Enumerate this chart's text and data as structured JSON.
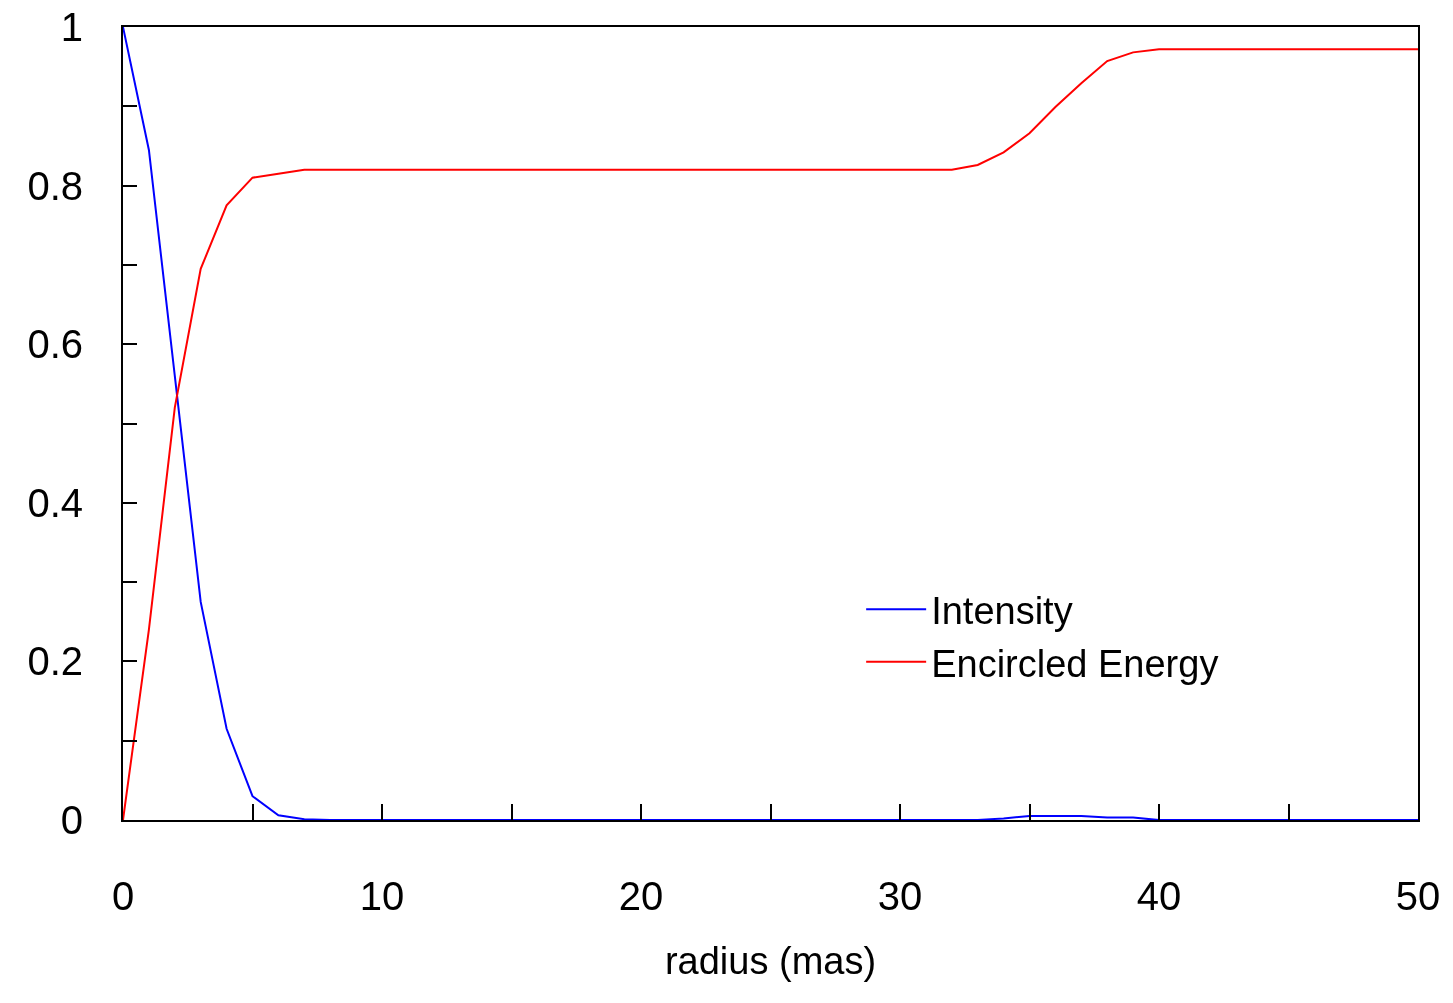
{
  "chart_data": {
    "type": "line",
    "xlabel": "radius (mas)",
    "x": [
      0,
      1,
      2,
      3,
      4,
      5,
      6,
      7,
      8,
      9,
      10,
      11,
      12,
      13,
      14,
      15,
      16,
      17,
      18,
      19,
      20,
      21,
      22,
      23,
      24,
      25,
      26,
      27,
      28,
      29,
      30,
      31,
      32,
      33,
      34,
      35,
      36,
      37,
      38,
      39,
      40,
      41,
      42,
      43,
      44,
      45,
      46,
      47,
      48,
      49,
      50
    ],
    "series": [
      {
        "name": "Intensity",
        "color": "#0000ff",
        "values": [
          1,
          0.845,
          0.56,
          0.275,
          0.115,
          0.03,
          0.006,
          0.001,
          0,
          0,
          0,
          0,
          0,
          0,
          0,
          0,
          0,
          0,
          0,
          0,
          0,
          0,
          0,
          0,
          0,
          0,
          0,
          0,
          0,
          0,
          0,
          0,
          0,
          0,
          0.002,
          0.005,
          0.005,
          0.005,
          0.003,
          0.003,
          0,
          0,
          0,
          0,
          0,
          0,
          0,
          0,
          0,
          0,
          0
        ]
      },
      {
        "name": "Encircled Energy",
        "color": "#ff0000",
        "values": [
          0,
          0.24,
          0.52,
          0.695,
          0.775,
          0.81,
          0.815,
          0.82,
          0.82,
          0.82,
          0.82,
          0.82,
          0.82,
          0.82,
          0.82,
          0.82,
          0.82,
          0.82,
          0.82,
          0.82,
          0.82,
          0.82,
          0.82,
          0.82,
          0.82,
          0.82,
          0.82,
          0.82,
          0.82,
          0.82,
          0.82,
          0.82,
          0.82,
          0.826,
          0.842,
          0.866,
          0.899,
          0.929,
          0.957,
          0.968,
          0.972,
          0.972,
          0.972,
          0.972,
          0.972,
          0.972,
          0.972,
          0.972,
          0.972,
          0.972,
          0.972
        ]
      }
    ],
    "xlim": [
      0,
      50
    ],
    "xticks": [
      0,
      {
        "value": 5,
        "label": null
      },
      10,
      {
        "value": 15,
        "label": null
      },
      20,
      {
        "value": 25,
        "label": null
      },
      30,
      {
        "value": 35,
        "label": null
      },
      40,
      {
        "value": 45,
        "label": null
      },
      50
    ],
    "ylim": [
      0,
      1
    ],
    "yticks": [
      0,
      {
        "value": 0.1,
        "label": null
      },
      0.2,
      {
        "value": 0.3,
        "label": null
      },
      0.4,
      {
        "value": 0.5,
        "label": null
      },
      0.6,
      {
        "value": 0.7,
        "label": null
      },
      0.8,
      {
        "value": 0.9,
        "label": null
      },
      1
    ],
    "grid": false,
    "legend": "bottom right",
    "marker": "none",
    "line_style": "solid"
  }
}
